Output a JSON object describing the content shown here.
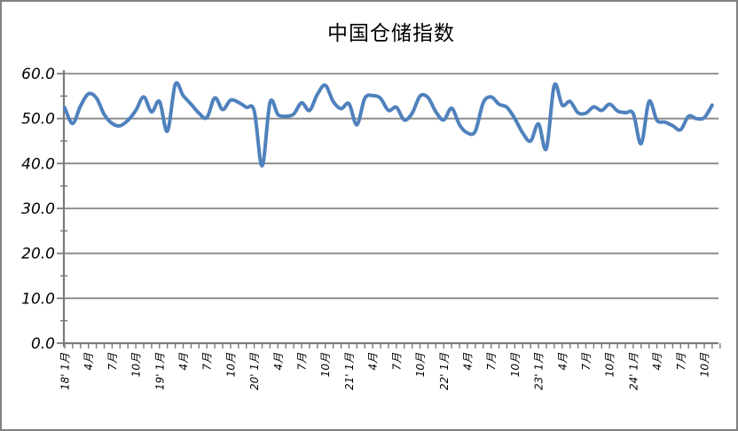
{
  "window": {
    "background": "#FFFFFF",
    "border_color": "#808080"
  },
  "chart_data": {
    "type": "line",
    "title": "中国仓储指数",
    "xlabel": "",
    "ylabel": "",
    "legend_position": "none",
    "grid": "horizontal",
    "ylim": [
      0,
      60
    ],
    "y_tick_step": 10,
    "y_minor_tick_step": 5,
    "y_tick_labels": [
      "60.0",
      "50.0",
      "40.0",
      "30.0",
      "20.0",
      "10.0",
      "0.0"
    ],
    "x_tick_every_n_months": 3,
    "x_tick_labels": [
      "18' 1月",
      "4月",
      "7月",
      "10月",
      "19' 1月",
      "4月",
      "7月",
      "10月",
      "20' 1月",
      "4月",
      "7月",
      "10月",
      "21' 1月",
      "4月",
      "7月",
      "10月",
      "22' 1月",
      "4月",
      "7月",
      "10月",
      "23' 1月",
      "4月",
      "7月",
      "10月",
      "24' 1月",
      "4月",
      "7月",
      "10月"
    ],
    "line_color": "#4F81BD",
    "line_width": 4,
    "smooth_line": true,
    "grid_color": "#878787",
    "axis_color": "#7A7A7A",
    "text_color": "#000000",
    "categories": [
      "2018-01",
      "2018-02",
      "2018-03",
      "2018-04",
      "2018-05",
      "2018-06",
      "2018-07",
      "2018-08",
      "2018-09",
      "2018-10",
      "2018-11",
      "2018-12",
      "2019-01",
      "2019-02",
      "2019-03",
      "2019-04",
      "2019-05",
      "2019-06",
      "2019-07",
      "2019-08",
      "2019-09",
      "2019-10",
      "2019-11",
      "2019-12",
      "2020-01",
      "2020-02",
      "2020-03",
      "2020-04",
      "2020-05",
      "2020-06",
      "2020-07",
      "2020-08",
      "2020-09",
      "2020-10",
      "2020-11",
      "2020-12",
      "2021-01",
      "2021-02",
      "2021-03",
      "2021-04",
      "2021-05",
      "2021-06",
      "2021-07",
      "2021-08",
      "2021-09",
      "2021-10",
      "2021-11",
      "2021-12",
      "2022-01",
      "2022-02",
      "2022-03",
      "2022-04",
      "2022-05",
      "2022-06",
      "2022-07",
      "2022-08",
      "2022-09",
      "2022-10",
      "2022-11",
      "2022-12",
      "2023-01",
      "2023-02",
      "2023-03",
      "2023-04",
      "2023-05",
      "2023-06",
      "2023-07",
      "2023-08",
      "2023-09",
      "2023-10",
      "2023-11",
      "2023-12",
      "2024-01",
      "2024-02",
      "2024-03",
      "2024-04",
      "2024-05",
      "2024-06",
      "2024-07",
      "2024-08",
      "2024-09",
      "2024-10",
      "2024-11"
    ],
    "series": [
      {
        "name": "中国仓储指数",
        "values": [
          52.4,
          48.9,
          52.8,
          55.5,
          54.6,
          50.9,
          48.9,
          48.4,
          49.6,
          51.8,
          54.8,
          51.5,
          53.8,
          47.2,
          57.6,
          55.1,
          53.2,
          51.2,
          50.2,
          54.6,
          52.0,
          54.1,
          53.6,
          52.5,
          51.7,
          39.5,
          53.6,
          50.9,
          50.5,
          51.0,
          53.5,
          51.8,
          55.4,
          57.4,
          53.8,
          52.2,
          53.3,
          48.6,
          54.5,
          55.1,
          54.5,
          51.8,
          52.5,
          49.7,
          51.2,
          55.0,
          54.7,
          51.5,
          49.7,
          52.3,
          48.6,
          46.8,
          47.2,
          53.5,
          54.8,
          53.2,
          52.5,
          50.0,
          46.8,
          45.0,
          48.8,
          43.3,
          57.4,
          53.0,
          53.8,
          51.3,
          51.2,
          52.6,
          51.8,
          53.2,
          51.7,
          51.3,
          51.1,
          44.4,
          53.8,
          49.6,
          49.2,
          48.4,
          47.5,
          50.5,
          50.0,
          50.2,
          53.0
        ]
      }
    ]
  }
}
